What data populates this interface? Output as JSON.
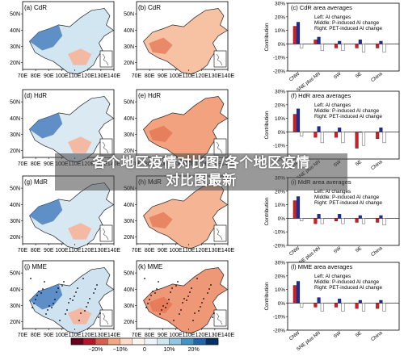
{
  "watermark": {
    "line1": "各个地区疫情对比图/各个地区疫情",
    "line2": "对比图最新"
  },
  "map_panels": {
    "col1": [
      "(a) CdR",
      "(d) HdR",
      "(g) MdR",
      "(j) MME"
    ],
    "col2": [
      "(b) CdR",
      "(e) HdR",
      "(h) MdR",
      "(k) MME"
    ],
    "lat_ticks": [
      "50N",
      "40N",
      "30N",
      "20N"
    ],
    "lon_ticks": [
      "70E",
      "80E",
      "90E",
      "100E",
      "110E",
      "120E",
      "130E",
      "140E"
    ]
  },
  "colorbar": {
    "tick_labels": [
      "−20%",
      "−10%",
      "0",
      "10%",
      "20%"
    ],
    "colors": [
      "#67001f",
      "#b2182b",
      "#d6604d",
      "#f4a582",
      "#fddbc7",
      "#fff5ee",
      "#eef4fa",
      "#d1e5f0",
      "#92c5de",
      "#4393c3",
      "#2166ac",
      "#053061"
    ]
  },
  "legend_lines": [
    "Left: AI changes",
    "Middle: P-induced AI change",
    "Right: PET-induced AI change"
  ],
  "chart_data": [
    {
      "type": "bar",
      "title": "(c) CdR area averages",
      "ylabel": "Contribution",
      "ylim": [
        -20,
        30
      ],
      "yticks": [
        "30%",
        "20%",
        "10%",
        "0%",
        "-10%",
        "-20%"
      ],
      "categories": [
        "CNW",
        "SNE plus NN",
        "SW",
        "SE",
        "China"
      ],
      "series": [
        {
          "name": "Left: AI changes",
          "values": [
            13,
            3,
            -3,
            -3,
            -3
          ]
        },
        {
          "name": "Middle: P-induced AI change",
          "values": [
            16,
            5,
            2,
            3,
            2
          ]
        },
        {
          "name": "Right: PET-induced AI change",
          "values": [
            -3,
            -5,
            -5,
            -6,
            -6
          ]
        }
      ]
    },
    {
      "type": "bar",
      "title": "(f) HdR area averages",
      "ylabel": "Contribution",
      "ylim": [
        -20,
        30
      ],
      "yticks": [
        "30%",
        "20%",
        "10%",
        "0%",
        "-10%",
        "-20%"
      ],
      "categories": [
        "CNW",
        "SNE plus NN",
        "SW",
        "SE",
        "China"
      ],
      "series": [
        {
          "name": "Left: AI changes",
          "values": [
            13,
            -4,
            -4,
            -12,
            -5
          ]
        },
        {
          "name": "Middle: P-induced AI change",
          "values": [
            17,
            4,
            3,
            0,
            3
          ]
        },
        {
          "name": "Right: PET-induced AI change",
          "values": [
            -3,
            -8,
            -8,
            -10,
            -8
          ]
        }
      ]
    },
    {
      "type": "bar",
      "title": "(i) MdR area averages",
      "ylabel": "Contribution",
      "ylim": [
        -20,
        30
      ],
      "yticks": [
        "30%",
        "20%",
        "10%",
        "0%",
        "-10%",
        "-20%"
      ],
      "categories": [
        "CNW",
        "SNE plus NN",
        "SW",
        "SE",
        "China"
      ],
      "series": [
        {
          "name": "Left: AI changes",
          "values": [
            13,
            -4,
            -2,
            -3,
            -3
          ]
        },
        {
          "name": "Middle: P-induced AI change",
          "values": [
            16,
            3,
            3,
            2,
            2
          ]
        },
        {
          "name": "Right: PET-induced AI change",
          "values": [
            -2,
            -4,
            -4,
            -4,
            -5
          ]
        }
      ]
    },
    {
      "type": "bar",
      "title": "(l) MME area averages",
      "ylabel": "Contribution",
      "ylim": [
        -20,
        30
      ],
      "yticks": [
        "30%",
        "20%",
        "10%",
        "0%",
        "-10%",
        "-20%"
      ],
      "categories": [
        "CNW",
        "SNE plus NN",
        "SW",
        "SE",
        "China"
      ],
      "series": [
        {
          "name": "Left: AI changes",
          "values": [
            13,
            -3,
            -3,
            -4,
            -4
          ]
        },
        {
          "name": "Middle: P-induced AI change",
          "values": [
            16,
            4,
            3,
            2,
            2
          ]
        },
        {
          "name": "Right: PET-induced AI change",
          "values": [
            -3,
            -6,
            -6,
            -6,
            -6
          ]
        }
      ]
    }
  ]
}
